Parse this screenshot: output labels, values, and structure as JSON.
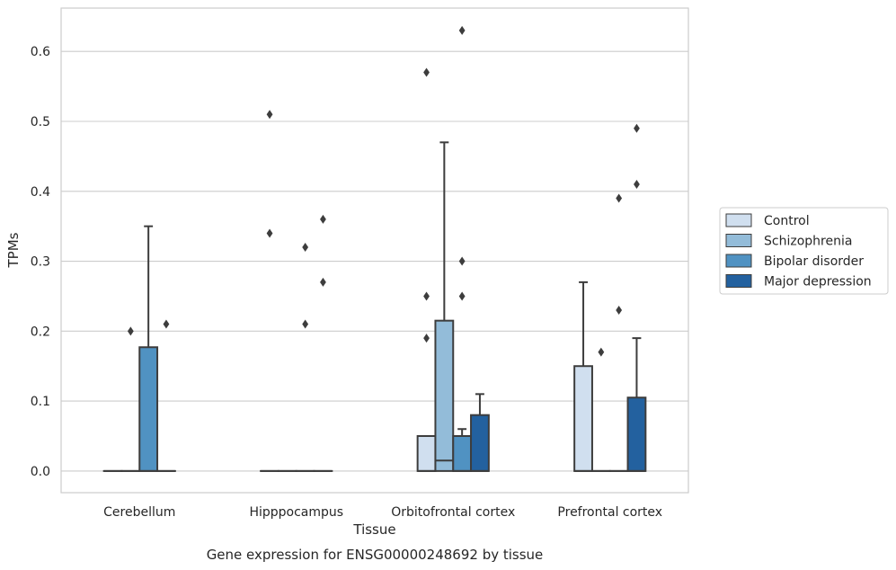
{
  "chart_data": {
    "type": "boxplot",
    "caption": "Gene expression for ENSG00000248692 by tissue",
    "xlabel": "Tissue",
    "ylabel": "TPMs",
    "ylim": [
      -0.031,
      0.662
    ],
    "yticks": [
      0.0,
      0.1,
      0.2,
      0.3,
      0.4,
      0.5,
      0.6
    ],
    "ytick_labels": [
      "0.0",
      "0.1",
      "0.2",
      "0.3",
      "0.4",
      "0.5",
      "0.6"
    ],
    "grid": "horizontal",
    "legend_position": "right",
    "categories": [
      "Cerebellum",
      "Hipppocampus",
      "Orbitofrontal cortex",
      "Prefrontal cortex"
    ],
    "series": [
      {
        "name": "Control",
        "color": "#d0dfef",
        "boxes": [
          {
            "q1": 0,
            "median": 0,
            "q3": 0,
            "whislo": 0,
            "whishi": 0,
            "fliers": []
          },
          {
            "q1": 0,
            "median": 0,
            "q3": 0,
            "whislo": 0,
            "whishi": 0,
            "fliers": [
              0.34,
              0.51
            ]
          },
          {
            "q1": 0,
            "median": 0,
            "q3": 0.05,
            "whislo": 0,
            "whishi": 0.05,
            "fliers": [
              0.19,
              0.25,
              0.57
            ]
          },
          {
            "q1": 0,
            "median": 0,
            "q3": 0.15,
            "whislo": 0,
            "whishi": 0.27,
            "fliers": []
          }
        ]
      },
      {
        "name": "Schizophrenia",
        "color": "#93bcd9",
        "boxes": [
          {
            "q1": 0,
            "median": 0,
            "q3": 0,
            "whislo": 0,
            "whishi": 0,
            "fliers": [
              0.2
            ]
          },
          {
            "q1": 0,
            "median": 0,
            "q3": 0,
            "whislo": 0,
            "whishi": 0,
            "fliers": []
          },
          {
            "q1": 0,
            "median": 0.015,
            "q3": 0.215,
            "whislo": 0,
            "whishi": 0.47,
            "fliers": []
          },
          {
            "q1": 0,
            "median": 0,
            "q3": 0,
            "whislo": 0,
            "whishi": 0,
            "fliers": [
              0.17
            ]
          }
        ]
      },
      {
        "name": "Bipolar disorder",
        "color": "#5092c2",
        "boxes": [
          {
            "q1": 0,
            "median": 0,
            "q3": 0.177,
            "whislo": 0,
            "whishi": 0.35,
            "fliers": []
          },
          {
            "q1": 0,
            "median": 0,
            "q3": 0,
            "whislo": 0,
            "whishi": 0,
            "fliers": [
              0.21,
              0.32
            ]
          },
          {
            "q1": 0,
            "median": 0,
            "q3": 0.05,
            "whislo": 0,
            "whishi": 0.06,
            "fliers": [
              0.25,
              0.3,
              0.63
            ]
          },
          {
            "q1": 0,
            "median": 0,
            "q3": 0,
            "whislo": 0,
            "whishi": 0,
            "fliers": [
              0.23,
              0.39
            ]
          }
        ]
      },
      {
        "name": "Major depression",
        "color": "#23619f",
        "boxes": [
          {
            "q1": 0,
            "median": 0,
            "q3": 0,
            "whislo": 0,
            "whishi": 0,
            "fliers": [
              0.21
            ]
          },
          {
            "q1": 0,
            "median": 0,
            "q3": 0,
            "whislo": 0,
            "whishi": 0,
            "fliers": [
              0.27,
              0.36
            ]
          },
          {
            "q1": 0,
            "median": 0,
            "q3": 0.08,
            "whislo": 0,
            "whishi": 0.11,
            "fliers": []
          },
          {
            "q1": 0,
            "median": 0,
            "q3": 0.105,
            "whislo": 0,
            "whishi": 0.19,
            "fliers": [
              0.41,
              0.49
            ]
          }
        ]
      }
    ],
    "colors": {
      "grid": "#cccccc",
      "frame": "#cccccc",
      "edge": "#3d3d3d",
      "text": "#262626"
    }
  }
}
